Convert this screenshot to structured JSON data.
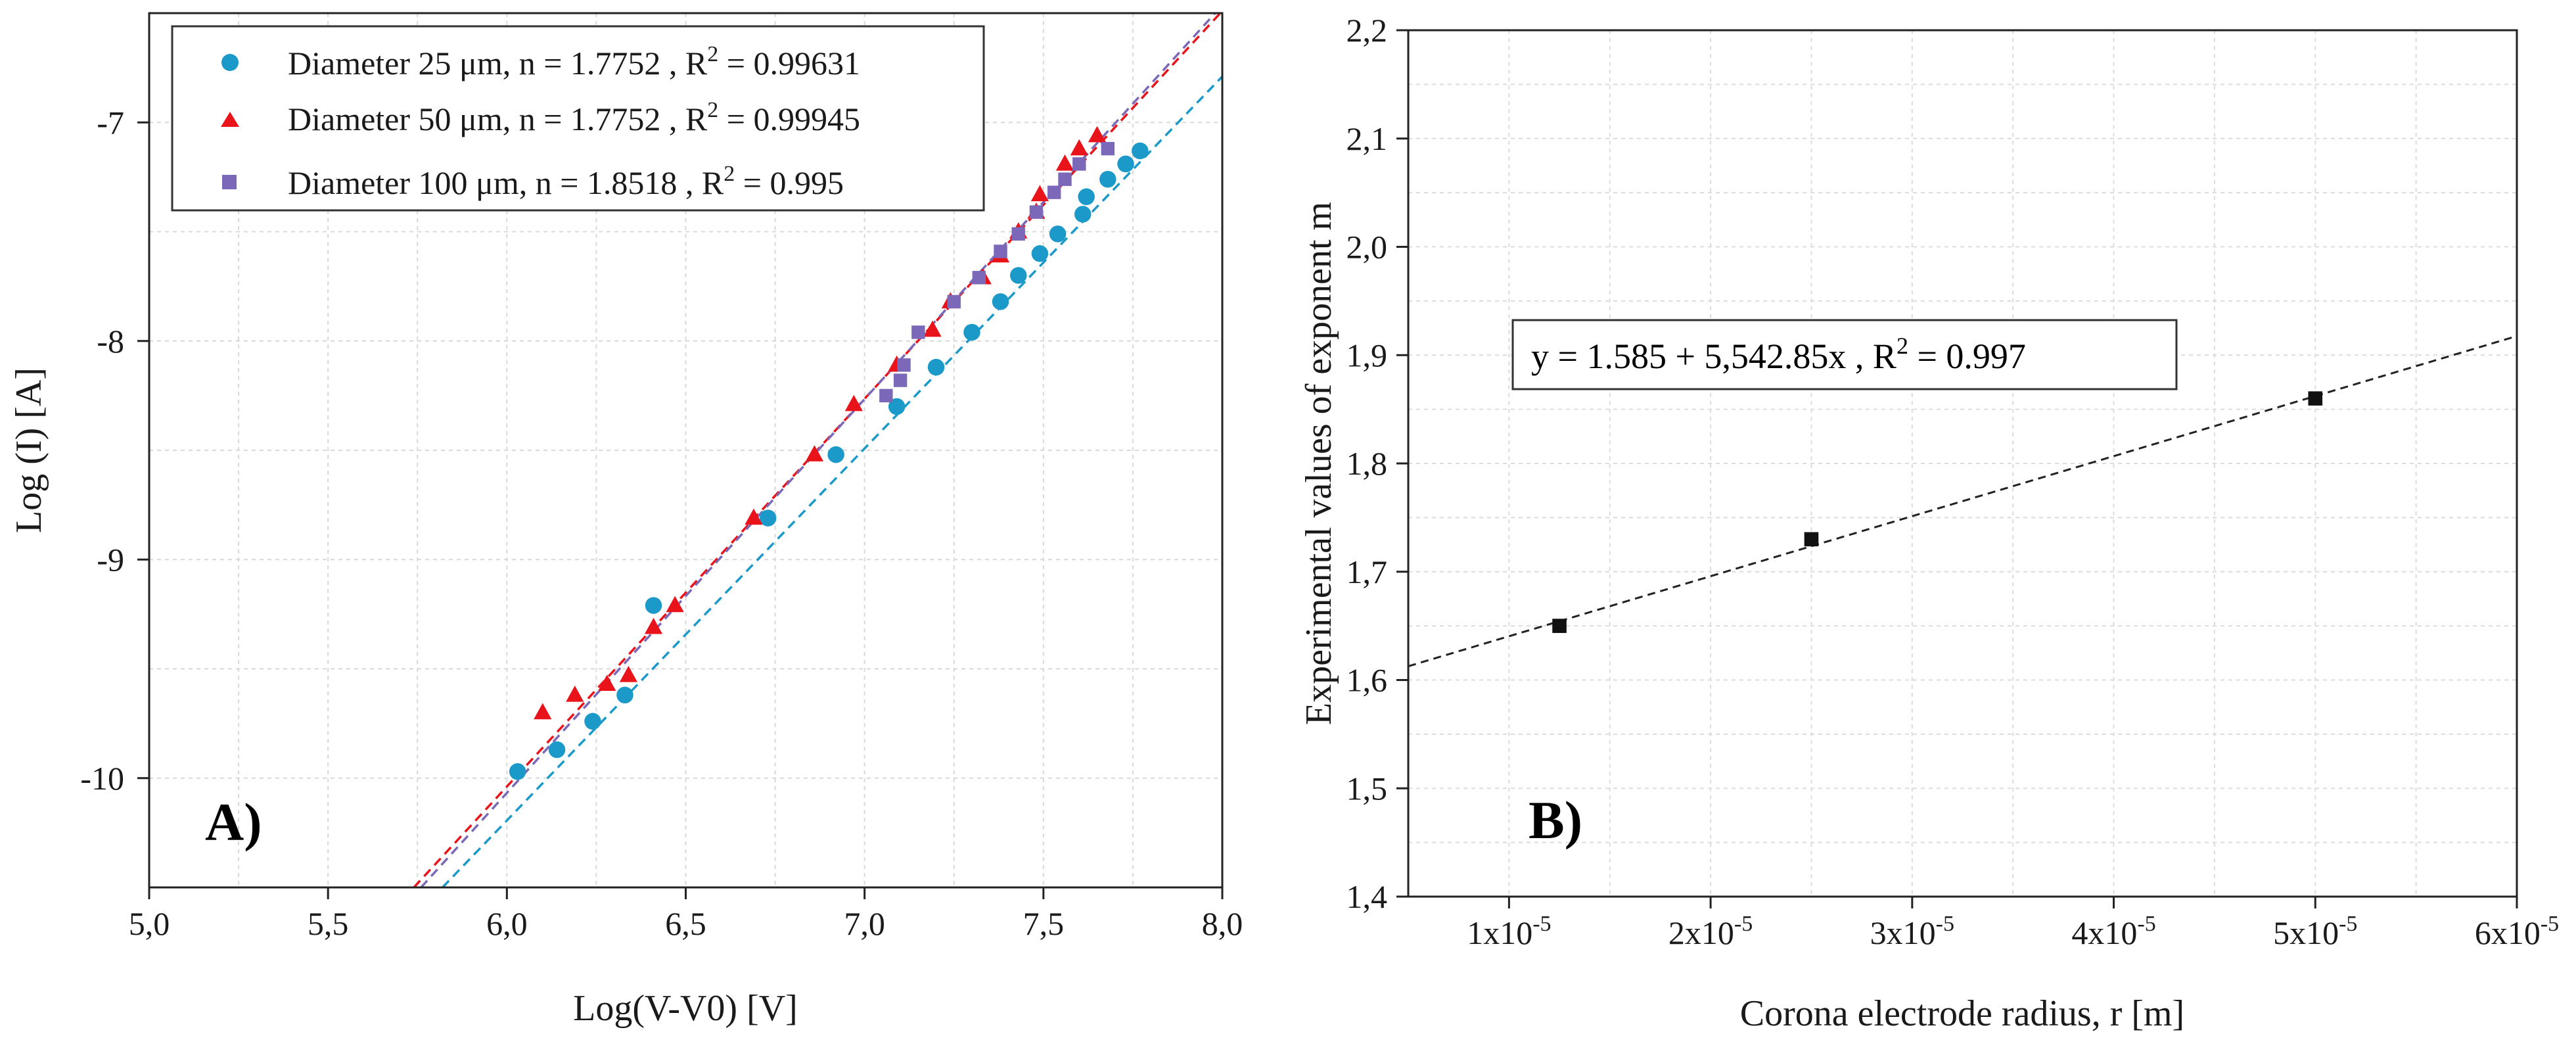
{
  "chart_data": [
    {
      "type": "scatter",
      "panel_label": "A)",
      "xlabel": "Log(V-V0) [V]",
      "ylabel": "Log (I) [A]",
      "xlim": [
        5.0,
        8.0
      ],
      "ylim": [
        -10.5,
        -6.5
      ],
      "xticks": [
        5.0,
        5.5,
        6.0,
        6.5,
        7.0,
        7.5,
        8.0
      ],
      "xtick_labels": [
        "5,0",
        "5,5",
        "6,0",
        "6,5",
        "7,0",
        "7,5",
        "8,0"
      ],
      "yticks": [
        -10,
        -9,
        -8,
        -7
      ],
      "ytick_labels": [
        "-10",
        "-9",
        "-8",
        "-7"
      ],
      "grid": true,
      "legend_position": "top-left",
      "series": [
        {
          "name": "Diameter 25 μm, n = 1.7752 , R",
          "r2": "0.99631",
          "marker": "circle",
          "color": "#1b9ac9",
          "points": [
            [
              6.03,
              -9.97
            ],
            [
              6.14,
              -9.87
            ],
            [
              6.24,
              -9.74
            ],
            [
              6.33,
              -9.62
            ],
            [
              6.41,
              -9.21
            ],
            [
              6.73,
              -8.81
            ],
            [
              6.92,
              -8.52
            ],
            [
              7.09,
              -8.3
            ],
            [
              7.2,
              -8.12
            ],
            [
              7.3,
              -7.96
            ],
            [
              7.38,
              -7.82
            ],
            [
              7.43,
              -7.7
            ],
            [
              7.49,
              -7.6
            ],
            [
              7.54,
              -7.51
            ],
            [
              7.61,
              -7.42
            ],
            [
              7.62,
              -7.34
            ],
            [
              7.68,
              -7.26
            ],
            [
              7.73,
              -7.19
            ],
            [
              7.77,
              -7.13
            ]
          ],
          "fit": {
            "x": [
              5.82,
              8.0
            ],
            "y": [
              -10.5,
              -6.79
            ]
          }
        },
        {
          "name": "Diameter 50 μm, n = 1.7752 , R",
          "r2": "0.99945",
          "marker": "triangle",
          "color": "#e8141a",
          "points": [
            [
              6.1,
              -9.7
            ],
            [
              6.19,
              -9.62
            ],
            [
              6.28,
              -9.57
            ],
            [
              6.34,
              -9.53
            ],
            [
              6.41,
              -9.31
            ],
            [
              6.47,
              -9.21
            ],
            [
              6.69,
              -8.81
            ],
            [
              6.86,
              -8.52
            ],
            [
              6.97,
              -8.29
            ],
            [
              7.09,
              -8.11
            ],
            [
              7.19,
              -7.95
            ],
            [
              7.24,
              -7.82
            ],
            [
              7.33,
              -7.71
            ],
            [
              7.38,
              -7.61
            ],
            [
              7.43,
              -7.5
            ],
            [
              7.48,
              -7.41
            ],
            [
              7.49,
              -7.33
            ],
            [
              7.56,
              -7.19
            ],
            [
              7.6,
              -7.12
            ],
            [
              7.65,
              -7.06
            ]
          ],
          "fit": {
            "x": [
              5.74,
              8.0
            ],
            "y": [
              -10.5,
              -6.49
            ]
          }
        },
        {
          "name": "Diameter 100 μm, n = 1.8518 , R",
          "r2": "0.995",
          "marker": "square",
          "color": "#7b68b9",
          "points": [
            [
              7.06,
              -8.25
            ],
            [
              7.1,
              -8.18
            ],
            [
              7.11,
              -8.11
            ],
            [
              7.15,
              -7.96
            ],
            [
              7.25,
              -7.82
            ],
            [
              7.32,
              -7.71
            ],
            [
              7.38,
              -7.59
            ],
            [
              7.43,
              -7.51
            ],
            [
              7.48,
              -7.41
            ],
            [
              7.53,
              -7.32
            ],
            [
              7.56,
              -7.26
            ],
            [
              7.6,
              -7.19
            ],
            [
              7.68,
              -7.12
            ]
          ],
          "fit": {
            "x": [
              5.76,
              7.98
            ],
            "y": [
              -10.5,
              -6.5
            ]
          }
        }
      ]
    },
    {
      "type": "scatter",
      "panel_label": "B)",
      "xlabel": "Corona electrode radius, r [m]",
      "ylabel": "Experimental values of exponent m",
      "xlim": [
        5e-06,
        6e-05
      ],
      "ylim": [
        1.4,
        2.2
      ],
      "xticks": [
        1e-05,
        2e-05,
        3e-05,
        4e-05,
        5e-05,
        6e-05
      ],
      "xtick_labels": [
        "1x10",
        "2x10",
        "3x10",
        "4x10",
        "5x10",
        "6x10"
      ],
      "xtick_exponent": "-5",
      "yticks": [
        1.4,
        1.5,
        1.6,
        1.7,
        1.8,
        1.9,
        2.0,
        2.1,
        2.2
      ],
      "ytick_labels": [
        "1,4",
        "1,5",
        "1,6",
        "1,7",
        "1,8",
        "1,9",
        "2,0",
        "2,1",
        "2,2"
      ],
      "grid": true,
      "equation": "y = 1.585 + 5,542.85x , R",
      "equation_r2": "= 0.997",
      "series": [
        {
          "marker": "square",
          "color": "#111111",
          "points": [
            [
              1.25e-05,
              1.65
            ],
            [
              2.5e-05,
              1.73
            ],
            [
              5e-05,
              1.86
            ]
          ],
          "fit": {
            "x": [
              5e-06,
              6e-05
            ],
            "y": [
              1.6127,
              1.9176
            ]
          }
        }
      ]
    }
  ]
}
